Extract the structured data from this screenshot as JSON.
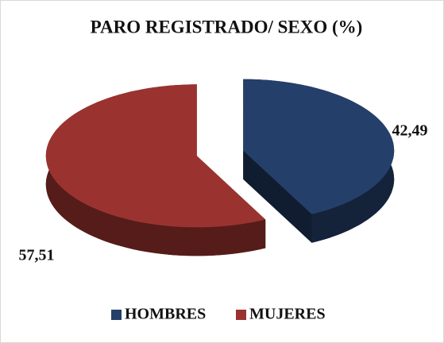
{
  "chart_data": {
    "type": "pie3d",
    "title": "PARO REGISTRADO/ SEXO (%)",
    "categories": [
      "HOMBRES",
      "MUJERES"
    ],
    "values": [
      42.49,
      57.51
    ],
    "value_labels": [
      "42,49",
      "57,51"
    ],
    "colors": [
      "#24406a",
      "#9a3330"
    ],
    "legend": "bottom"
  }
}
